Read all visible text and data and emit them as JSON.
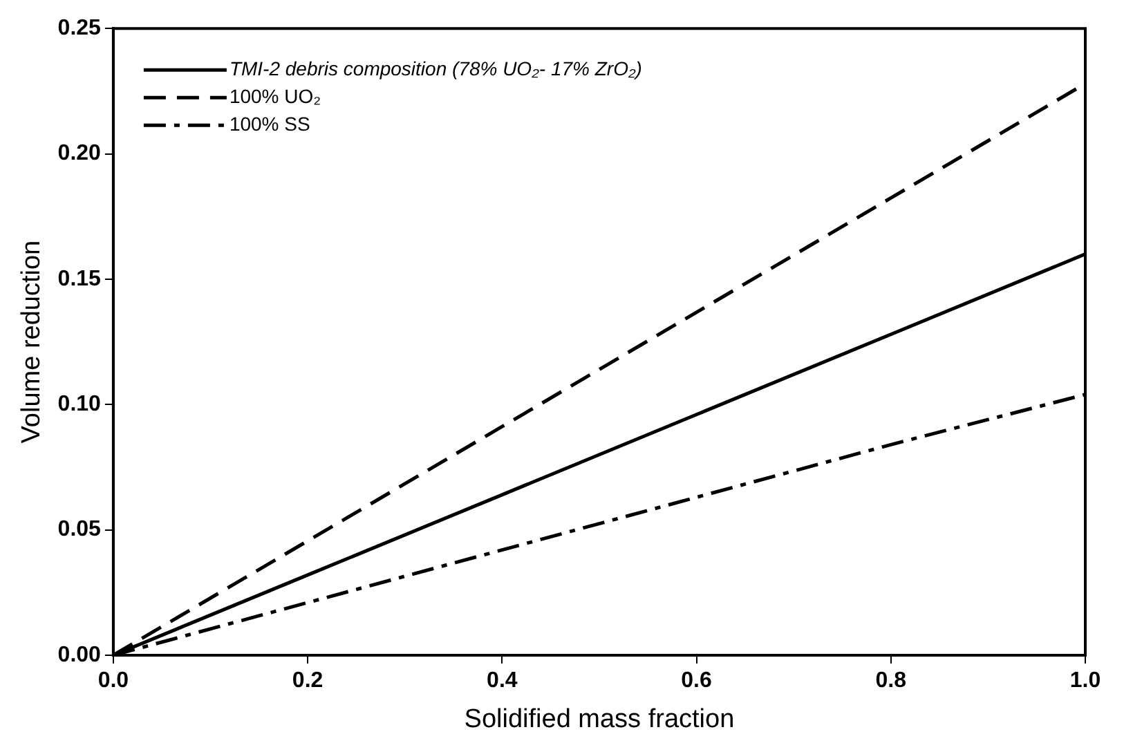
{
  "chart_data": {
    "type": "line",
    "xlabel": "Solidified mass fraction",
    "ylabel": "Volume reduction",
    "x": [
      0,
      0.2,
      0.4,
      0.6,
      0.8,
      1.0
    ],
    "series": [
      {
        "name": "TMI-2 debris composition (78% UO₂- 17% ZrO₂)",
        "color": "#000000",
        "line_style": "solid",
        "values": [
          0,
          0.032,
          0.064,
          0.096,
          0.128,
          0.16
        ]
      },
      {
        "name": "100% UO₂",
        "color": "#000000",
        "line_style": "dashed",
        "values": [
          0,
          0.0456,
          0.0912,
          0.1368,
          0.1824,
          0.228
        ]
      },
      {
        "name": "100% SS",
        "color": "#000000",
        "line_style": "dashdot",
        "values": [
          0,
          0.021,
          0.042,
          0.063,
          0.084,
          0.104
        ]
      }
    ],
    "xlim": [
      0,
      1
    ],
    "xticks": [
      {
        "value": 0,
        "label": "0.0"
      },
      {
        "value": 0.2,
        "label": "0.2"
      },
      {
        "value": 0.4,
        "label": "0.4"
      },
      {
        "value": 0.6,
        "label": "0.6"
      },
      {
        "value": 0.8,
        "label": "0.8"
      },
      {
        "value": 1,
        "label": "1.0"
      }
    ],
    "ylim": [
      0,
      0.25
    ],
    "yticks": [
      {
        "value": 0,
        "label": "0.00"
      },
      {
        "value": 0.05,
        "label": "0.05"
      },
      {
        "value": 0.1,
        "label": "0.10"
      },
      {
        "value": 0.15,
        "label": "0.15"
      },
      {
        "value": 0.2,
        "label": "0.20"
      },
      {
        "value": 0.25,
        "label": "0.25"
      }
    ],
    "grid": false,
    "legend": "top left",
    "marker": "none"
  }
}
